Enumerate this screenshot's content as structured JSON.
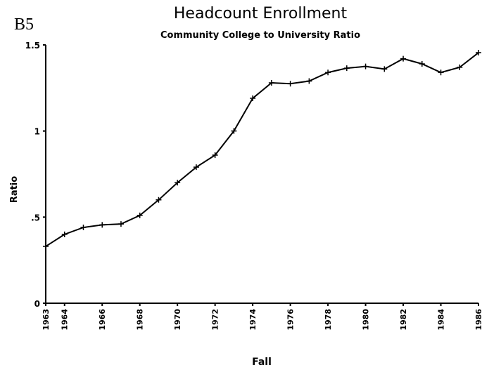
{
  "chart_data": {
    "type": "line",
    "label": "B5",
    "title": "Headcount Enrollment",
    "subtitle": "Community College to University Ratio",
    "xlabel": "Fall",
    "ylabel": "Ratio",
    "x": [
      1963,
      1964,
      1965,
      1966,
      1967,
      1968,
      1969,
      1970,
      1971,
      1972,
      1973,
      1974,
      1975,
      1976,
      1977,
      1978,
      1979,
      1980,
      1981,
      1982,
      1983,
      1984,
      1985,
      1986
    ],
    "series": [
      {
        "name": "Ratio",
        "color": "#000000",
        "values": [
          0.33,
          0.4,
          0.44,
          0.455,
          0.46,
          0.51,
          0.6,
          0.7,
          0.79,
          0.86,
          1.0,
          1.19,
          1.28,
          1.275,
          1.29,
          1.34,
          1.365,
          1.375,
          1.36,
          1.42,
          1.39,
          1.34,
          1.37,
          1.455
        ]
      }
    ],
    "xlim": [
      1963,
      1986
    ],
    "xticks": [
      1963,
      1964,
      1966,
      1968,
      1970,
      1972,
      1974,
      1976,
      1978,
      1980,
      1982,
      1984,
      1986
    ],
    "ylim": [
      0,
      1.5
    ],
    "yticks": [
      0,
      {
        "value": 0.5,
        "label": ".5"
      },
      1,
      1.5
    ],
    "grid": false
  }
}
